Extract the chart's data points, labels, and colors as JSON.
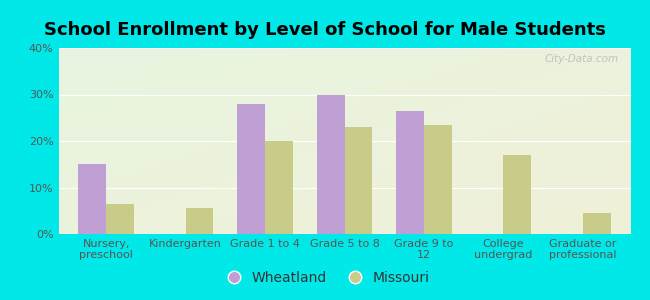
{
  "title": "School Enrollment by Level of School for Male Students",
  "categories": [
    "Nursery,\npreschool",
    "Kindergarten",
    "Grade 1 to 4",
    "Grade 5 to 8",
    "Grade 9 to\n12",
    "College\nundergrad",
    "Graduate or\nprofessional"
  ],
  "wheatland": [
    15,
    0,
    28,
    30,
    26.5,
    0,
    0
  ],
  "missouri": [
    6.5,
    5.5,
    20,
    23,
    23.5,
    17,
    4.5
  ],
  "wheatland_color": "#bf9fd4",
  "missouri_color": "#c8cc88",
  "background_color": "#00e8e8",
  "plot_bg_top_left": "#e8f5e0",
  "plot_bg_bottom_right": "#f0f0d8",
  "title_fontsize": 13,
  "tick_fontsize": 8,
  "legend_fontsize": 10,
  "ylim": [
    0,
    40
  ],
  "yticks": [
    0,
    10,
    20,
    30,
    40
  ],
  "ytick_labels": [
    "0%",
    "10%",
    "20%",
    "30%",
    "40%"
  ],
  "bar_width": 0.35,
  "figsize": [
    6.5,
    3.0
  ],
  "dpi": 100
}
